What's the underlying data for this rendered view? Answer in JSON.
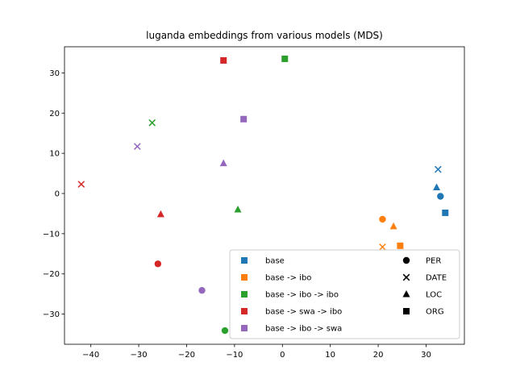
{
  "chart_data": {
    "type": "scatter",
    "title": "luganda embeddings from various models (MDS)",
    "xlabel": "",
    "ylabel": "",
    "xlim": [
      -45.5,
      38.0
    ],
    "ylim": [
      -37.5,
      36.5
    ],
    "xticks": [
      -40,
      -30,
      -20,
      -10,
      0,
      10,
      20,
      30
    ],
    "yticks": [
      -30,
      -20,
      -10,
      0,
      10,
      20,
      30
    ],
    "xtick_labels": [
      "−40",
      "−30",
      "−20",
      "−10",
      "0",
      "10",
      "20",
      "30"
    ],
    "ytick_labels": [
      "−30",
      "−20",
      "−10",
      "0",
      "10",
      "20",
      "30"
    ],
    "grid": false,
    "legend_position": "lower-right",
    "series": [
      {
        "name": "base",
        "color": "#1f77b4",
        "points": [
          {
            "label": "PER",
            "x": 33.0,
            "y": -0.7
          },
          {
            "label": "DATE",
            "x": 32.5,
            "y": 6.0
          },
          {
            "label": "LOC",
            "x": 32.2,
            "y": 1.5
          },
          {
            "label": "ORG",
            "x": 34.0,
            "y": -4.8
          }
        ]
      },
      {
        "name": "base -> ibo",
        "color": "#ff7f0e",
        "points": [
          {
            "label": "PER",
            "x": 20.9,
            "y": -6.4
          },
          {
            "label": "DATE",
            "x": 20.9,
            "y": -13.3
          },
          {
            "label": "LOC",
            "x": 23.2,
            "y": -8.2
          },
          {
            "label": "ORG",
            "x": 24.6,
            "y": -13.0
          }
        ]
      },
      {
        "name": "base -> ibo -> ibo",
        "color": "#2ca02c",
        "points": [
          {
            "label": "PER",
            "x": -12.0,
            "y": -34.1
          },
          {
            "label": "DATE",
            "x": -27.2,
            "y": 17.6
          },
          {
            "label": "LOC",
            "x": -9.3,
            "y": -4.0
          },
          {
            "label": "ORG",
            "x": 0.5,
            "y": 33.5
          }
        ]
      },
      {
        "name": "base -> swa -> ibo",
        "color": "#d62728",
        "points": [
          {
            "label": "PER",
            "x": -26.0,
            "y": -17.5
          },
          {
            "label": "DATE",
            "x": -42.0,
            "y": 2.3
          },
          {
            "label": "LOC",
            "x": -25.4,
            "y": -5.2
          },
          {
            "label": "ORG",
            "x": -12.3,
            "y": 33.1
          }
        ]
      },
      {
        "name": "base -> ibo -> swa",
        "color": "#9467bd",
        "points": [
          {
            "label": "PER",
            "x": -16.8,
            "y": -24.1
          },
          {
            "label": "DATE",
            "x": -30.3,
            "y": 11.7
          },
          {
            "label": "LOC",
            "x": -12.3,
            "y": 7.5
          },
          {
            "label": "ORG",
            "x": -8.1,
            "y": 18.5
          }
        ]
      }
    ],
    "marker_legend": [
      {
        "label": "PER",
        "marker": "circle"
      },
      {
        "label": "DATE",
        "marker": "x"
      },
      {
        "label": "LOC",
        "marker": "triangle"
      },
      {
        "label": "ORG",
        "marker": "square"
      }
    ]
  }
}
